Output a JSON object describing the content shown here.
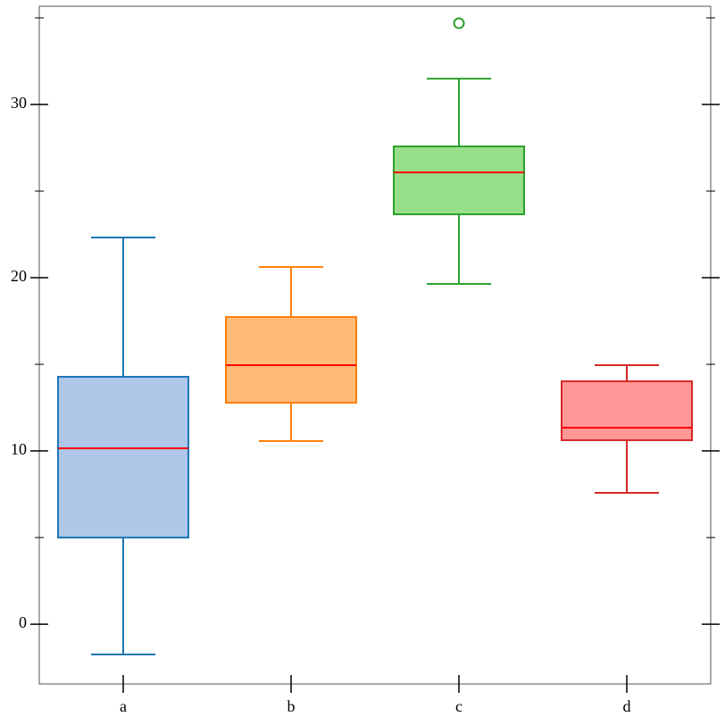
{
  "chart_data": {
    "type": "box",
    "categories": [
      "a",
      "b",
      "c",
      "d"
    ],
    "boxes": [
      {
        "low": -1.75,
        "q1": 5.0,
        "median": 10.15,
        "q3": 14.28,
        "high": 22.32,
        "outliers": []
      },
      {
        "low": 10.57,
        "q1": 12.78,
        "median": 14.95,
        "q3": 17.73,
        "high": 20.62,
        "outliers": []
      },
      {
        "low": 19.64,
        "q1": 23.66,
        "median": 26.08,
        "q3": 27.58,
        "high": 31.49,
        "outliers": [
          34.69
        ]
      },
      {
        "low": 7.58,
        "q1": 10.62,
        "median": 11.34,
        "q3": 14.02,
        "high": 14.95,
        "outliers": []
      }
    ],
    "fill_colors": [
      "#aec7e8",
      "#ffbb78",
      "#98df8a",
      "#ff9896"
    ],
    "line_colors": [
      "#1f77b4",
      "#ff7f0e",
      "#2ca02c",
      "#d62728"
    ],
    "median_color": "#ff0000",
    "ylim": [
      -3.45,
      35.67
    ],
    "yticks": [
      0,
      10,
      20,
      30
    ],
    "yminorticks": [
      5,
      15,
      25,
      35
    ]
  }
}
